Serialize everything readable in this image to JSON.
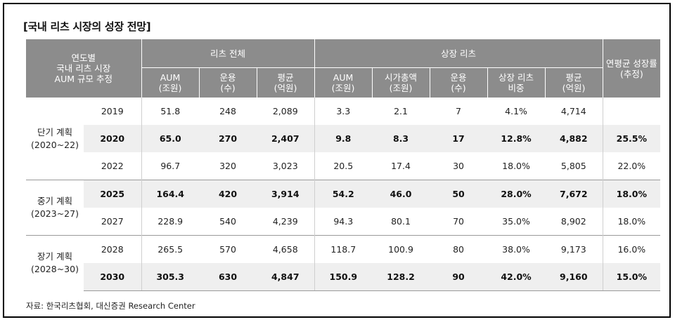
{
  "title": "[국내 리츠 시장의 성장 전망]",
  "header": {
    "corner": [
      "연도별",
      "국내 리츠 시장",
      "AUM 규모 추정"
    ],
    "group_all": "리츠 전체",
    "group_listed": "상장 리츠",
    "cagr": [
      "연평균 성장률",
      "(추정)"
    ],
    "sub": [
      [
        "AUM",
        "(조원)"
      ],
      [
        "운용",
        "(수)"
      ],
      [
        "평균",
        "(억원)"
      ],
      [
        "AUM",
        "(조원)"
      ],
      [
        "시가총액",
        "(조원)"
      ],
      [
        "운용",
        "(수)"
      ],
      [
        "상장 리츠",
        "비중"
      ],
      [
        "평균",
        "(억원)"
      ]
    ]
  },
  "plans": [
    {
      "name": "단기 계획",
      "range": "(2020~22)"
    },
    {
      "name": "중기 계획",
      "range": "(2023~27)"
    },
    {
      "name": "장기 계획",
      "range": "(2028~30)"
    }
  ],
  "rows": [
    {
      "year": "2019",
      "cells": [
        "51.8",
        "248",
        "2,089",
        "3.3",
        "2.1",
        "7",
        "4.1%",
        "4,714",
        ""
      ]
    },
    {
      "year": "2020",
      "cells": [
        "65.0",
        "270",
        "2,407",
        "9.8",
        "8.3",
        "17",
        "12.8%",
        "4,882",
        "25.5%"
      ]
    },
    {
      "year": "2022",
      "cells": [
        "96.7",
        "320",
        "3,023",
        "20.5",
        "17.4",
        "30",
        "18.0%",
        "5,805",
        "22.0%"
      ]
    },
    {
      "year": "2025",
      "cells": [
        "164.4",
        "420",
        "3,914",
        "54.2",
        "46.0",
        "50",
        "28.0%",
        "7,672",
        "18.0%"
      ]
    },
    {
      "year": "2027",
      "cells": [
        "228.9",
        "540",
        "4,239",
        "94.3",
        "80.1",
        "70",
        "35.0%",
        "8,902",
        "18.0%"
      ]
    },
    {
      "year": "2028",
      "cells": [
        "265.5",
        "570",
        "4,658",
        "118.7",
        "100.9",
        "80",
        "38.0%",
        "9,173",
        "16.0%"
      ]
    },
    {
      "year": "2030",
      "cells": [
        "305.3",
        "630",
        "4,847",
        "150.9",
        "128.2",
        "90",
        "42.0%",
        "9,160",
        "15.0%"
      ]
    }
  ],
  "source": "자료: 한국리츠협회, 대신증권 Research Center"
}
